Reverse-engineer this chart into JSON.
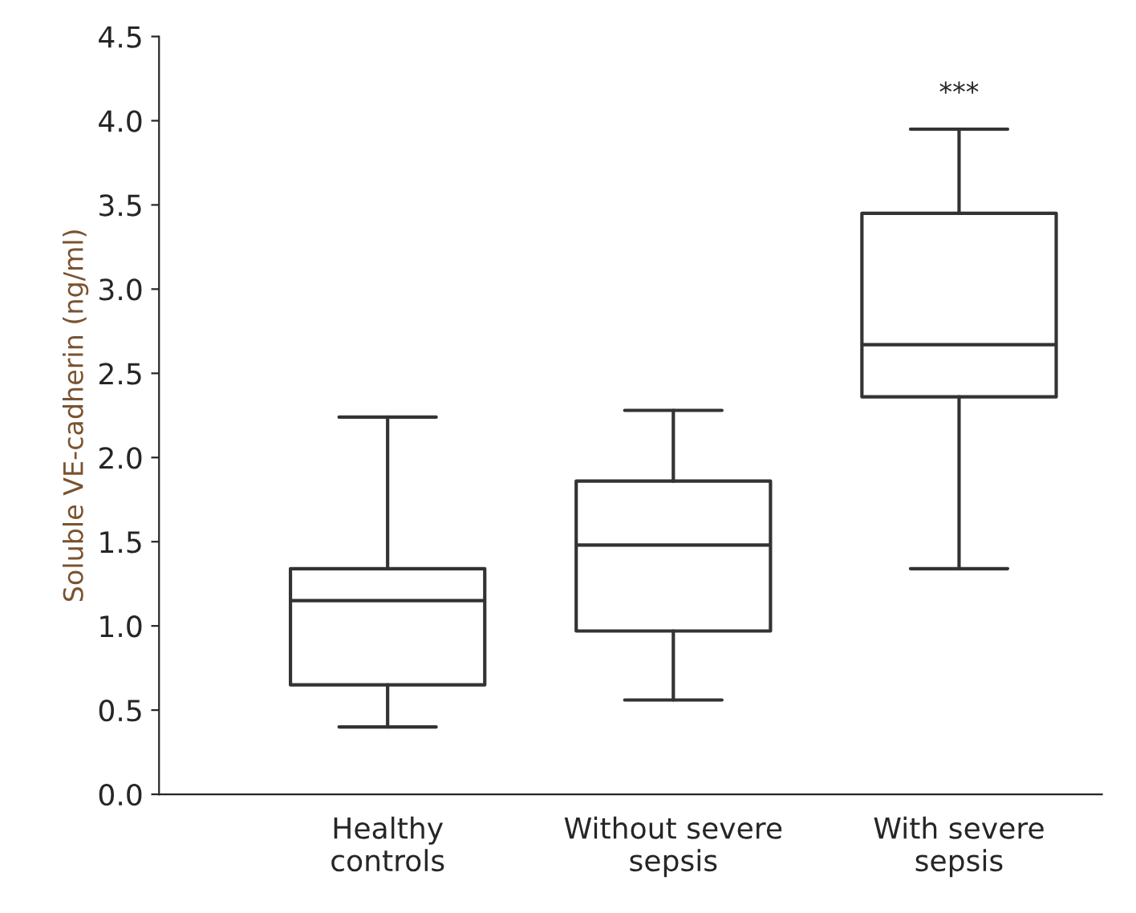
{
  "chart_data": {
    "type": "box",
    "ylabel": "Soluble VE-cadherin (ng/ml)",
    "categories": [
      "Healthy\ncontrols",
      "Without severe\nsepsis",
      "With severe\nsepsis"
    ],
    "boxes": [
      {
        "low": 0.4,
        "q1": 0.65,
        "median": 1.15,
        "q3": 1.34,
        "high": 2.24
      },
      {
        "low": 0.56,
        "q1": 0.97,
        "median": 1.48,
        "q3": 1.86,
        "high": 2.28
      },
      {
        "low": 1.34,
        "q1": 2.36,
        "median": 2.67,
        "q3": 3.45,
        "high": 3.95
      }
    ],
    "annotations": [
      "***"
    ],
    "ylim": [
      0,
      4.5
    ],
    "yticks": [
      {
        "value": 0,
        "label": "0.0"
      },
      0.5,
      {
        "value": 1,
        "label": "1.0"
      },
      1.5,
      {
        "value": 2,
        "label": "2.0"
      },
      2.5,
      {
        "value": 3,
        "label": "3.0"
      },
      3.5,
      {
        "value": 4,
        "label": "4.0"
      },
      4.5
    ],
    "grid": false
  }
}
